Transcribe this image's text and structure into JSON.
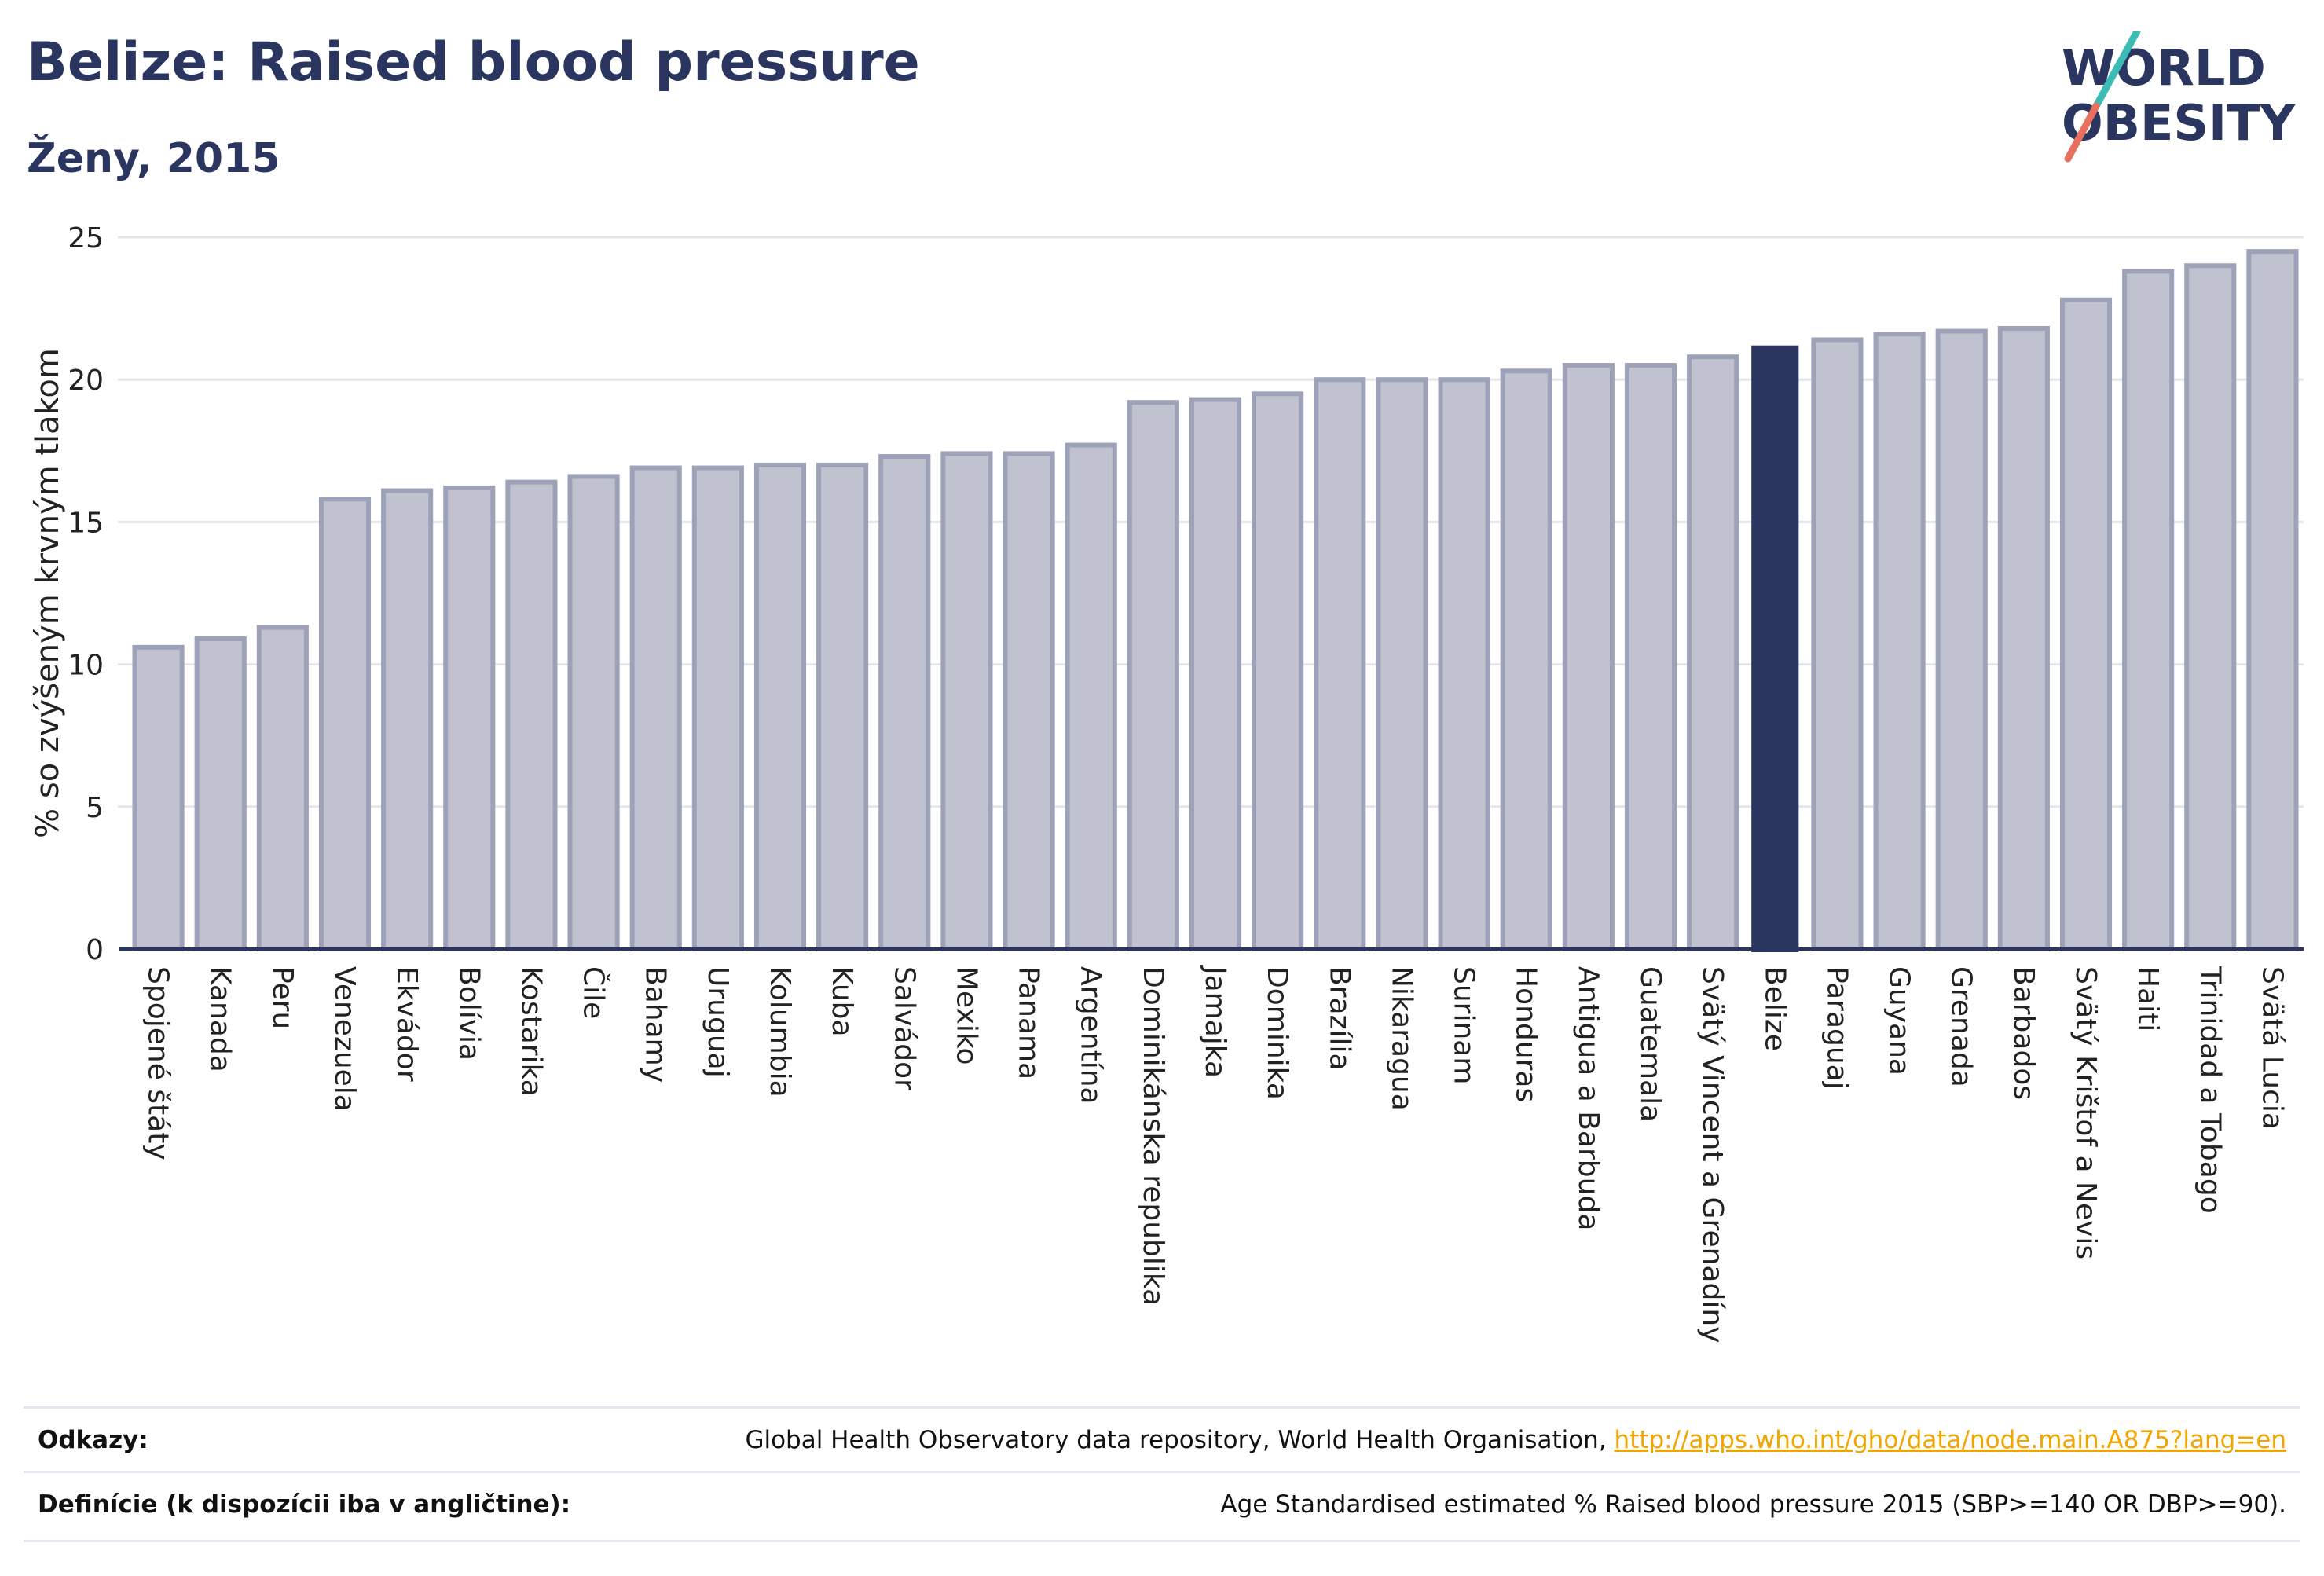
{
  "header": {
    "title": "Belize: Raised blood pressure",
    "subtitle": "Ženy, 2015"
  },
  "logo": {
    "line1": "WORLD",
    "line2": "OBESITY"
  },
  "chart_data": {
    "type": "bar",
    "ylabel": "% so zvýšeným krvným tlakom",
    "ylim": [
      0,
      25
    ],
    "yticks": [
      0,
      5,
      10,
      15,
      20,
      25
    ],
    "grid": true,
    "highlight": "Belize",
    "colors": {
      "bar": "#c0c3cf",
      "bar_edge": "#9ea2b9",
      "highlight": "#2a3560",
      "grid": "#e4e6ec",
      "axis": "#2a3560"
    },
    "categories": [
      "Spojené štáty",
      "Kanada",
      "Peru",
      "Venezuela",
      "Ekvádor",
      "Bolívia",
      "Kostarika",
      "Čile",
      "Bahamy",
      "Uruguaj",
      "Kolumbia",
      "Kuba",
      "Salvádor",
      "Mexiko",
      "Panama",
      "Argentína",
      "Dominikánska republika",
      "Jamajka",
      "Dominika",
      "Brazília",
      "Nikaragua",
      "Surinam",
      "Honduras",
      "Antigua a Barbuda",
      "Guatemala",
      "Svätý Vincent a Grenadíny",
      "Belize",
      "Paraguaj",
      "Guyana",
      "Grenada",
      "Barbados",
      "Svätý Krištof a Nevis",
      "Haiti",
      "Trinidad a Tobago",
      "Svätá Lucia"
    ],
    "values": [
      10.6,
      10.9,
      11.3,
      15.8,
      16.1,
      16.2,
      16.4,
      16.6,
      16.9,
      16.9,
      17.0,
      17.0,
      17.3,
      17.4,
      17.4,
      17.7,
      19.2,
      19.3,
      19.5,
      20.0,
      20.0,
      20.0,
      20.3,
      20.5,
      20.5,
      20.8,
      21.2,
      21.4,
      21.6,
      21.7,
      21.8,
      22.8,
      23.8,
      24.0,
      24.5
    ]
  },
  "footer": {
    "references_label": "Odkazy:",
    "references_text": "Global Health Observatory data repository, World Health Organisation, ",
    "references_link": "http://apps.who.int/gho/data/node.main.A875?lang=en",
    "definitions_label": "Definície (k dispozícii iba v angličtine):",
    "definitions_text": "Age Standardised estimated % Raised blood pressure 2015 (SBP>=140 OR DBP>=90)."
  }
}
